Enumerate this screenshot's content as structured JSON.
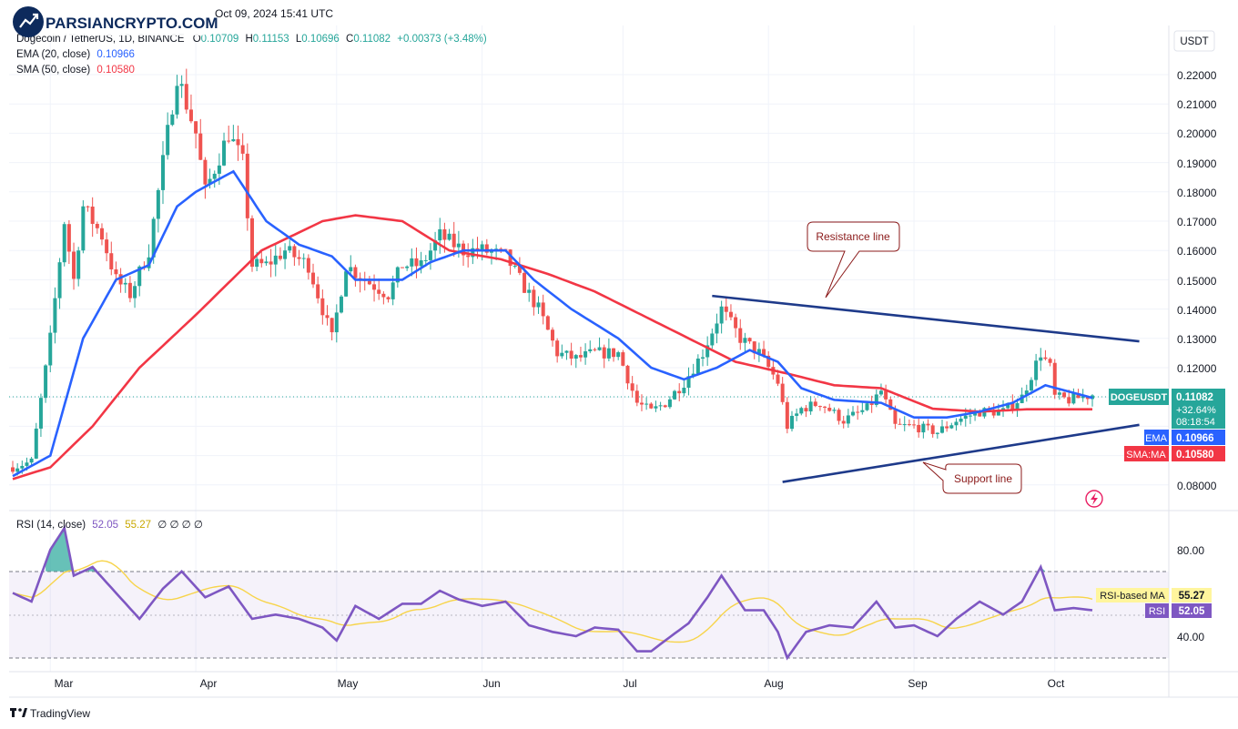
{
  "header": {
    "top_line": "Oct 09, 2024 15:41 UTC",
    "symbol": "Dogecoin / TetherUS, 1D, BINANCE",
    "ohlc": {
      "o_label": "O",
      "o": "0.10709",
      "h_label": "H",
      "h": "0.11153",
      "l_label": "L",
      "l": "0.10696",
      "c_label": "C",
      "c": "0.11082",
      "change": "+0.00373 (+3.48%)"
    },
    "ema_label": "EMA (20, close)",
    "ema_value": "0.10966",
    "sma_label": "SMA (50, close)",
    "sma_value": "0.10580"
  },
  "watermark": "PARSIANCRYPTO.COM",
  "price_axis": {
    "currency": "USDT",
    "ticks": [
      "0.22000",
      "0.21000",
      "0.20000",
      "0.19000",
      "0.18000",
      "0.17000",
      "0.16000",
      "0.15000",
      "0.14000",
      "0.13000",
      "0.12000",
      "0.08000"
    ]
  },
  "price_tags": {
    "symbol": "DOGEUSDT",
    "price": "0.11082",
    "pct": "+32.64%",
    "countdown": "08:18:54",
    "ema_label": "EMA",
    "ema_value": "0.10966",
    "sma_label": "SMA:MA",
    "sma_value": "0.10580"
  },
  "annotations": {
    "resistance": "Resistance line",
    "support": "Support line"
  },
  "rsi": {
    "label": "RSI (14, close)",
    "value": "52.05",
    "ma_value": "55.27",
    "extra": "∅ ∅ ∅ ∅",
    "ticks": [
      "80.00",
      "40.00"
    ],
    "ma_tag_label": "RSI-based MA",
    "ma_tag_value": "55.27",
    "rsi_tag_label": "RSI",
    "rsi_tag_value": "52.05"
  },
  "time_axis": [
    "Mar",
    "Apr",
    "May",
    "Jun",
    "Jul",
    "Aug",
    "Sep",
    "Oct"
  ],
  "footer": {
    "brand": "TradingView"
  },
  "colors": {
    "up": "#26a69a",
    "down": "#ef5350",
    "ema": "#2962ff",
    "sma": "#f23645",
    "trend": "#1e3a8a",
    "rsi": "#7e57c2",
    "rsi_ma": "#f7d44a",
    "callout": "#8b1a1a"
  },
  "chart_data": {
    "type": "candlestick",
    "title": "Dogecoin / TetherUS, 1D, BINANCE",
    "x_range": [
      "2024-02-22",
      "2024-10-09"
    ],
    "ylim": [
      0.075,
      0.23
    ],
    "price_key_points": [
      [
        "2024-02-22",
        0.086
      ],
      [
        "2024-02-26",
        0.088
      ],
      [
        "2024-03-01",
        0.13
      ],
      [
        "2024-03-04",
        0.17
      ],
      [
        "2024-03-06",
        0.15
      ],
      [
        "2024-03-08",
        0.175
      ],
      [
        "2024-03-12",
        0.165
      ],
      [
        "2024-03-15",
        0.15
      ],
      [
        "2024-03-18",
        0.145
      ],
      [
        "2024-03-22",
        0.16
      ],
      [
        "2024-03-28",
        0.22
      ],
      [
        "2024-04-01",
        0.2
      ],
      [
        "2024-04-03",
        0.18
      ],
      [
        "2024-04-08",
        0.2
      ],
      [
        "2024-04-11",
        0.19
      ],
      [
        "2024-04-13",
        0.155
      ],
      [
        "2024-04-16",
        0.155
      ],
      [
        "2024-04-20",
        0.16
      ],
      [
        "2024-04-25",
        0.155
      ],
      [
        "2024-04-30",
        0.13
      ],
      [
        "2024-05-03",
        0.155
      ],
      [
        "2024-05-07",
        0.15
      ],
      [
        "2024-05-12",
        0.145
      ],
      [
        "2024-05-15",
        0.155
      ],
      [
        "2024-05-19",
        0.155
      ],
      [
        "2024-05-23",
        0.165
      ],
      [
        "2024-05-28",
        0.16
      ],
      [
        "2024-06-01",
        0.16
      ],
      [
        "2024-06-06",
        0.158
      ],
      [
        "2024-06-09",
        0.15
      ],
      [
        "2024-06-13",
        0.14
      ],
      [
        "2024-06-17",
        0.125
      ],
      [
        "2024-06-21",
        0.123
      ],
      [
        "2024-06-25",
        0.125
      ],
      [
        "2024-06-30",
        0.125
      ],
      [
        "2024-07-04",
        0.108
      ],
      [
        "2024-07-07",
        0.105
      ],
      [
        "2024-07-10",
        0.108
      ],
      [
        "2024-07-14",
        0.115
      ],
      [
        "2024-07-18",
        0.125
      ],
      [
        "2024-07-22",
        0.14
      ],
      [
        "2024-07-26",
        0.13
      ],
      [
        "2024-07-30",
        0.125
      ],
      [
        "2024-08-03",
        0.115
      ],
      [
        "2024-08-05",
        0.1
      ],
      [
        "2024-08-08",
        0.106
      ],
      [
        "2024-08-12",
        0.108
      ],
      [
        "2024-08-17",
        0.102
      ],
      [
        "2024-08-22",
        0.106
      ],
      [
        "2024-08-25",
        0.112
      ],
      [
        "2024-08-28",
        0.1
      ],
      [
        "2024-09-01",
        0.1
      ],
      [
        "2024-09-06",
        0.098
      ],
      [
        "2024-09-10",
        0.102
      ],
      [
        "2024-09-15",
        0.105
      ],
      [
        "2024-09-20",
        0.105
      ],
      [
        "2024-09-24",
        0.11
      ],
      [
        "2024-09-28",
        0.125
      ],
      [
        "2024-09-30",
        0.12
      ],
      [
        "2024-10-01",
        0.11
      ],
      [
        "2024-10-04",
        0.109
      ],
      [
        "2024-10-09",
        0.1108
      ]
    ],
    "ema20_key_points": [
      [
        "2024-02-22",
        0.083
      ],
      [
        "2024-03-01",
        0.09
      ],
      [
        "2024-03-08",
        0.13
      ],
      [
        "2024-03-15",
        0.15
      ],
      [
        "2024-03-22",
        0.155
      ],
      [
        "2024-03-28",
        0.175
      ],
      [
        "2024-04-01",
        0.18
      ],
      [
        "2024-04-09",
        0.187
      ],
      [
        "2024-04-16",
        0.17
      ],
      [
        "2024-04-23",
        0.162
      ],
      [
        "2024-04-30",
        0.158
      ],
      [
        "2024-05-05",
        0.15
      ],
      [
        "2024-05-15",
        0.15
      ],
      [
        "2024-05-21",
        0.156
      ],
      [
        "2024-05-28",
        0.16
      ],
      [
        "2024-06-06",
        0.16
      ],
      [
        "2024-06-12",
        0.15
      ],
      [
        "2024-06-20",
        0.14
      ],
      [
        "2024-06-30",
        0.13
      ],
      [
        "2024-07-07",
        0.12
      ],
      [
        "2024-07-14",
        0.116
      ],
      [
        "2024-07-21",
        0.12
      ],
      [
        "2024-07-28",
        0.126
      ],
      [
        "2024-08-03",
        0.122
      ],
      [
        "2024-08-08",
        0.113
      ],
      [
        "2024-08-15",
        0.109
      ],
      [
        "2024-08-25",
        0.108
      ],
      [
        "2024-09-01",
        0.103
      ],
      [
        "2024-09-08",
        0.103
      ],
      [
        "2024-09-15",
        0.105
      ],
      [
        "2024-09-22",
        0.108
      ],
      [
        "2024-09-29",
        0.114
      ],
      [
        "2024-10-09",
        0.1097
      ]
    ],
    "sma50_key_points": [
      [
        "2024-02-22",
        0.082
      ],
      [
        "2024-03-01",
        0.086
      ],
      [
        "2024-03-10",
        0.1
      ],
      [
        "2024-03-20",
        0.12
      ],
      [
        "2024-04-01",
        0.138
      ],
      [
        "2024-04-15",
        0.16
      ],
      [
        "2024-04-28",
        0.17
      ],
      [
        "2024-05-05",
        0.172
      ],
      [
        "2024-05-15",
        0.17
      ],
      [
        "2024-05-25",
        0.16
      ],
      [
        "2024-06-05",
        0.157
      ],
      [
        "2024-06-15",
        0.152
      ],
      [
        "2024-06-25",
        0.146
      ],
      [
        "2024-07-05",
        0.138
      ],
      [
        "2024-07-15",
        0.13
      ],
      [
        "2024-07-25",
        0.122
      ],
      [
        "2024-08-05",
        0.118
      ],
      [
        "2024-08-15",
        0.114
      ],
      [
        "2024-08-25",
        0.113
      ],
      [
        "2024-09-05",
        0.106
      ],
      [
        "2024-09-15",
        0.105
      ],
      [
        "2024-09-25",
        0.1058
      ],
      [
        "2024-10-09",
        0.1058
      ]
    ],
    "resistance_line": [
      [
        "2024-07-20",
        0.1445
      ],
      [
        "2024-10-19",
        0.129
      ]
    ],
    "support_line": [
      [
        "2024-08-04",
        0.081
      ],
      [
        "2024-10-19",
        0.1005
      ]
    ],
    "rsi_key_points": [
      [
        "2024-02-22",
        60
      ],
      [
        "2024-02-26",
        56
      ],
      [
        "2024-03-01",
        80
      ],
      [
        "2024-03-04",
        90
      ],
      [
        "2024-03-06",
        68
      ],
      [
        "2024-03-10",
        72
      ],
      [
        "2024-03-15",
        60
      ],
      [
        "2024-03-20",
        48
      ],
      [
        "2024-03-25",
        62
      ],
      [
        "2024-03-29",
        70
      ],
      [
        "2024-04-03",
        58
      ],
      [
        "2024-04-08",
        63
      ],
      [
        "2024-04-13",
        48
      ],
      [
        "2024-04-18",
        50
      ],
      [
        "2024-04-23",
        48
      ],
      [
        "2024-04-28",
        44
      ],
      [
        "2024-05-01",
        38
      ],
      [
        "2024-05-05",
        54
      ],
      [
        "2024-05-10",
        48
      ],
      [
        "2024-05-15",
        55
      ],
      [
        "2024-05-19",
        55
      ],
      [
        "2024-05-23",
        61
      ],
      [
        "2024-05-27",
        57
      ],
      [
        "2024-06-01",
        54
      ],
      [
        "2024-06-06",
        56
      ],
      [
        "2024-06-11",
        45
      ],
      [
        "2024-06-16",
        42
      ],
      [
        "2024-06-21",
        40
      ],
      [
        "2024-06-25",
        44
      ],
      [
        "2024-06-30",
        43
      ],
      [
        "2024-07-04",
        33
      ],
      [
        "2024-07-07",
        33
      ],
      [
        "2024-07-10",
        38
      ],
      [
        "2024-07-15",
        46
      ],
      [
        "2024-07-19",
        58
      ],
      [
        "2024-07-22",
        68
      ],
      [
        "2024-07-27",
        52
      ],
      [
        "2024-07-31",
        52
      ],
      [
        "2024-08-03",
        42
      ],
      [
        "2024-08-05",
        30
      ],
      [
        "2024-08-09",
        42
      ],
      [
        "2024-08-14",
        45
      ],
      [
        "2024-08-19",
        44
      ],
      [
        "2024-08-24",
        56
      ],
      [
        "2024-08-28",
        44
      ],
      [
        "2024-09-01",
        45
      ],
      [
        "2024-09-06",
        40
      ],
      [
        "2024-09-10",
        48
      ],
      [
        "2024-09-15",
        56
      ],
      [
        "2024-09-20",
        50
      ],
      [
        "2024-09-24",
        56
      ],
      [
        "2024-09-28",
        72
      ],
      [
        "2024-10-01",
        52
      ],
      [
        "2024-10-05",
        53
      ],
      [
        "2024-10-09",
        52
      ]
    ],
    "rsi_ylim": [
      20,
      100
    ],
    "rsi_band": [
      30,
      70
    ]
  }
}
